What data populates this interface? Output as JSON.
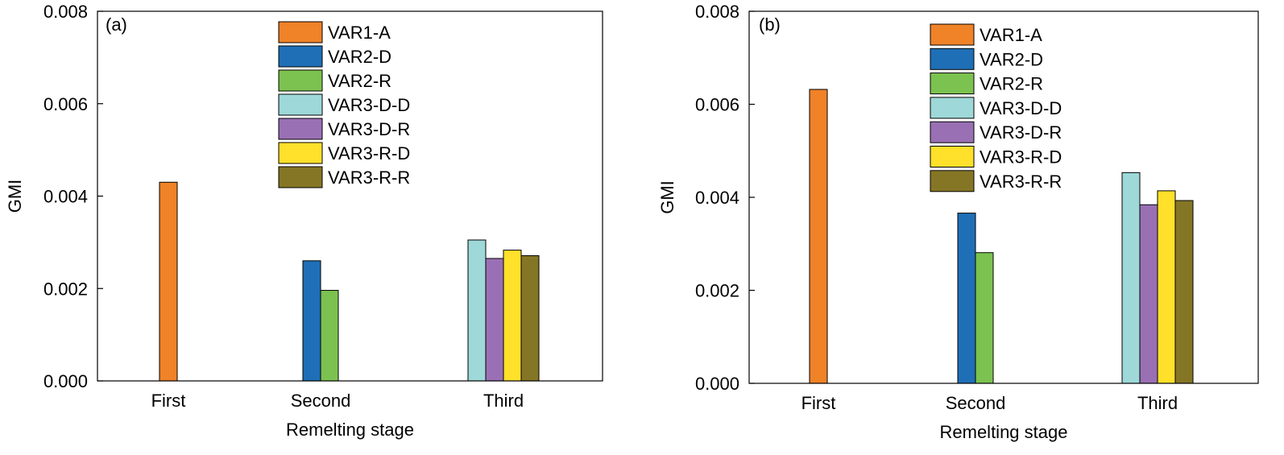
{
  "legend_colors": {
    "VAR1-A": "#F08228",
    "VAR2-D": "#1F6FB7",
    "VAR2-R": "#7CC250",
    "VAR3-D-D": "#9ED8D8",
    "VAR3-D-R": "#9A70B4",
    "VAR3-R-D": "#FFE02A",
    "VAR3-R-R": "#857626"
  },
  "chart_data": [
    {
      "type": "bar",
      "panel_label": "(a)",
      "xlabel": "Remelting stage",
      "ylabel": "GMI",
      "ylim": [
        0,
        0.008
      ],
      "yticks": [
        "0.000",
        "0.002",
        "0.004",
        "0.006",
        "0.008"
      ],
      "categories": [
        "First",
        "Second",
        "Third"
      ],
      "legend_position": "top-center",
      "series": [
        {
          "name": "VAR1-A",
          "values": [
            0.0043,
            null,
            null
          ]
        },
        {
          "name": "VAR2-D",
          "values": [
            null,
            0.0026,
            null
          ]
        },
        {
          "name": "VAR2-R",
          "values": [
            null,
            0.00196,
            null
          ]
        },
        {
          "name": "VAR3-D-D",
          "values": [
            null,
            null,
            0.00305
          ]
        },
        {
          "name": "VAR3-D-R",
          "values": [
            null,
            null,
            0.00265
          ]
        },
        {
          "name": "VAR3-R-D",
          "values": [
            null,
            null,
            0.00283
          ]
        },
        {
          "name": "VAR3-R-R",
          "values": [
            null,
            null,
            0.00271
          ]
        }
      ]
    },
    {
      "type": "bar",
      "panel_label": "(b)",
      "xlabel": "Remelting stage",
      "ylabel": "GMI",
      "ylim": [
        0,
        0.008
      ],
      "yticks": [
        "0.000",
        "0.002",
        "0.004",
        "0.006",
        "0.008"
      ],
      "categories": [
        "First",
        "Second",
        "Third"
      ],
      "legend_position": "top-center",
      "series": [
        {
          "name": "VAR1-A",
          "values": [
            0.00632,
            null,
            null
          ]
        },
        {
          "name": "VAR2-D",
          "values": [
            null,
            0.00366,
            null
          ]
        },
        {
          "name": "VAR2-R",
          "values": [
            null,
            0.00281,
            null
          ]
        },
        {
          "name": "VAR3-D-D",
          "values": [
            null,
            null,
            0.00453
          ]
        },
        {
          "name": "VAR3-D-R",
          "values": [
            null,
            null,
            0.00384
          ]
        },
        {
          "name": "VAR3-R-D",
          "values": [
            null,
            null,
            0.00414
          ]
        },
        {
          "name": "VAR3-R-R",
          "values": [
            null,
            null,
            0.00393
          ]
        }
      ]
    }
  ]
}
